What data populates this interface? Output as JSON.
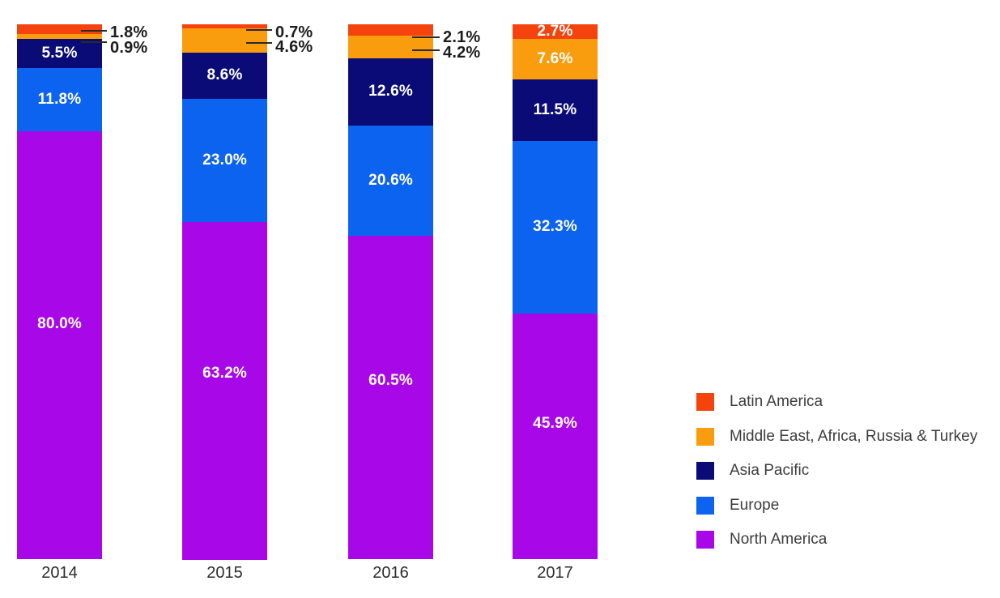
{
  "chart_data": {
    "type": "bar",
    "variant": "stacked-vertical-100pct",
    "title": "",
    "xlabel": "",
    "ylabel": "",
    "unit": "%",
    "ylim": [
      0,
      100
    ],
    "grid": false,
    "axes_visible": false,
    "background": "#FFFFFF",
    "categories": [
      "2014",
      "2015",
      "2016",
      "2017"
    ],
    "series": [
      {
        "name": "North America",
        "color": "#A807E8",
        "values": [
          80.0,
          63.2,
          60.5,
          45.9
        ],
        "labels": [
          "80.0%",
          "63.2%",
          "60.5%",
          "45.9%"
        ],
        "label_placement": [
          "inside",
          "inside",
          "inside",
          "inside"
        ]
      },
      {
        "name": "Europe",
        "color": "#0B63F0",
        "values": [
          11.8,
          23.0,
          20.6,
          32.3
        ],
        "labels": [
          "11.8%",
          "23.0%",
          "20.6%",
          "32.3%"
        ],
        "label_placement": [
          "inside",
          "inside",
          "inside",
          "inside"
        ]
      },
      {
        "name": "Asia Pacific",
        "color": "#0B0B78",
        "values": [
          5.5,
          8.6,
          12.6,
          11.5
        ],
        "labels": [
          "5.5%",
          "8.6%",
          "12.6%",
          "11.5%"
        ],
        "label_placement": [
          "inside",
          "inside",
          "inside",
          "inside"
        ]
      },
      {
        "name": "Middle East, Africa, Russia & Turkey",
        "color": "#F99D0F",
        "values": [
          0.9,
          4.6,
          4.2,
          7.6
        ],
        "labels": [
          "0.9%",
          "4.6%",
          "4.2%",
          "7.6%"
        ],
        "label_placement": [
          "callout",
          "callout",
          "callout",
          "inside"
        ]
      },
      {
        "name": "Latin America",
        "color": "#F5430E",
        "values": [
          1.8,
          0.7,
          2.1,
          2.7
        ],
        "labels": [
          "1.8%",
          "0.7%",
          "2.1%",
          "2.7%"
        ],
        "label_placement": [
          "callout",
          "callout",
          "callout",
          "inside"
        ]
      }
    ],
    "stack_order_top_to_bottom": [
      "Latin America",
      "Middle East, Africa, Russia & Turkey",
      "Asia Pacific",
      "Europe",
      "North America"
    ],
    "legend": {
      "position": "bottom-right",
      "items": [
        {
          "label": "Latin America",
          "color": "#F5430E"
        },
        {
          "label": "Middle East, Africa, Russia & Turkey",
          "color": "#F99D0F"
        },
        {
          "label": "Asia Pacific",
          "color": "#0B0B78"
        },
        {
          "label": "Europe",
          "color": "#0B63F0"
        },
        {
          "label": "North America",
          "color": "#A807E8"
        }
      ]
    }
  }
}
